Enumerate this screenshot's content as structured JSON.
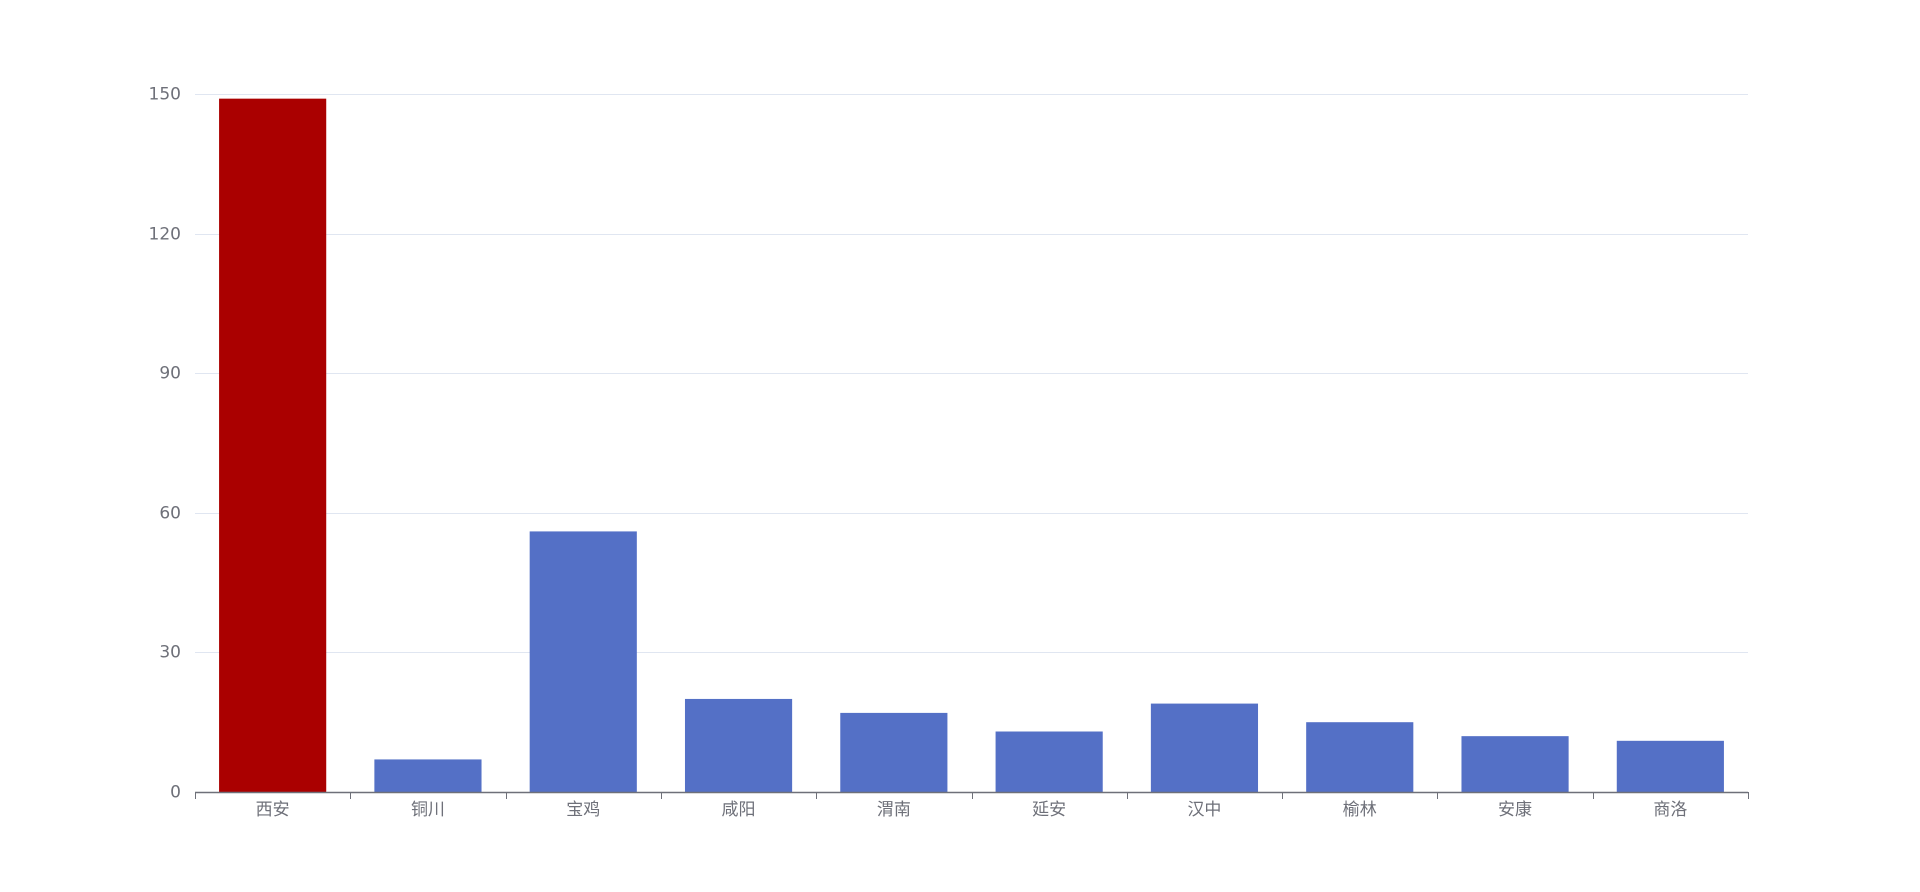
{
  "chart_data": {
    "type": "bar",
    "title": "",
    "xlabel": "",
    "ylabel": "",
    "categories": [
      "西安",
      "铜川",
      "宝鸡",
      "咸阳",
      "渭南",
      "延安",
      "汉中",
      "榆林",
      "安康",
      "商洛"
    ],
    "values": [
      149,
      7,
      56,
      20,
      17,
      13,
      19,
      15,
      12,
      11
    ],
    "ylim": [
      0,
      150
    ],
    "yticks": [
      0,
      30,
      60,
      90,
      120,
      150
    ],
    "grid": true,
    "legend": "none",
    "colors": {
      "default_bar": "#5470c6",
      "highlight_bar": "#aa0000",
      "grid": "#e0e6f1",
      "axis": "#6e7079",
      "tick_text": "#6e7079"
    },
    "highlight_index": 0
  }
}
